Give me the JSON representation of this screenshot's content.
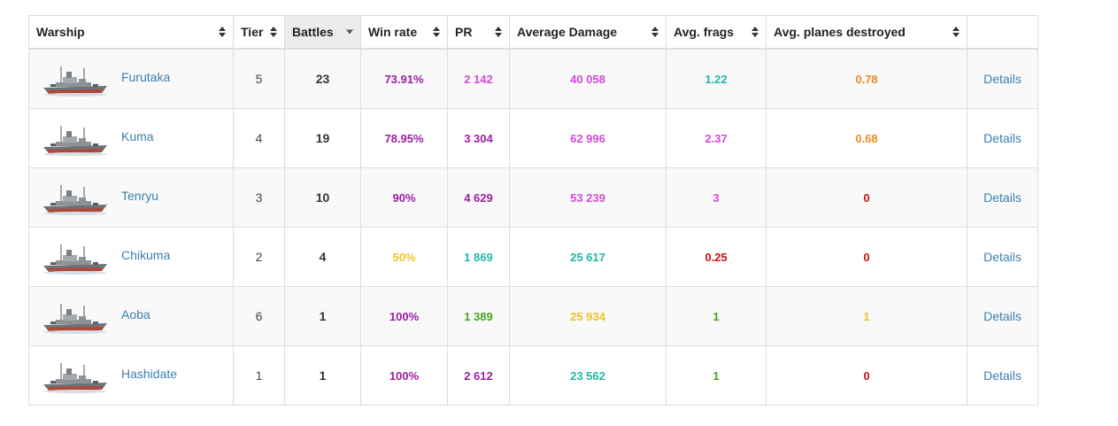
{
  "columns": [
    {
      "label": "Warship",
      "sorted": false
    },
    {
      "label": "Tier",
      "sorted": false
    },
    {
      "label": "Battles",
      "sorted": true
    },
    {
      "label": "Win rate",
      "sorted": false
    },
    {
      "label": "PR",
      "sorted": false
    },
    {
      "label": "Average Damage",
      "sorted": false
    },
    {
      "label": "Avg. frags",
      "sorted": false
    },
    {
      "label": "Avg. planes destroyed",
      "sorted": false
    },
    {
      "label": "",
      "sorted": false
    }
  ],
  "colors": {
    "purple": "#9b1ea3",
    "magenta": "#d24bd8",
    "teal": "#1fb8a6",
    "green": "#44a51c",
    "yellow": "#f0c22a",
    "orange": "#ee8a1e",
    "red": "#d00f0f",
    "link": "#3a7fb0"
  },
  "rows": [
    {
      "name": "Furutaka",
      "tier": "5",
      "battles": "23",
      "win_rate": {
        "text": "73.91%",
        "color": "#9b1ea3"
      },
      "pr": {
        "text": "2 142",
        "color": "#d24bd8"
      },
      "avg_damage": {
        "text": "40 058",
        "color": "#d24bd8"
      },
      "avg_frags": {
        "text": "1.22",
        "color": "#1fb8a6"
      },
      "avg_planes": {
        "text": "0.78",
        "color": "#ee8a1e"
      },
      "details": "Details"
    },
    {
      "name": "Kuma",
      "tier": "4",
      "battles": "19",
      "win_rate": {
        "text": "78.95%",
        "color": "#9b1ea3"
      },
      "pr": {
        "text": "3 304",
        "color": "#9b1ea3"
      },
      "avg_damage": {
        "text": "62 996",
        "color": "#d24bd8"
      },
      "avg_frags": {
        "text": "2.37",
        "color": "#d24bd8"
      },
      "avg_planes": {
        "text": "0.68",
        "color": "#ee8a1e"
      },
      "details": "Details"
    },
    {
      "name": "Tenryu",
      "tier": "3",
      "battles": "10",
      "win_rate": {
        "text": "90%",
        "color": "#9b1ea3"
      },
      "pr": {
        "text": "4 629",
        "color": "#9b1ea3"
      },
      "avg_damage": {
        "text": "53 239",
        "color": "#d24bd8"
      },
      "avg_frags": {
        "text": "3",
        "color": "#d24bd8"
      },
      "avg_planes": {
        "text": "0",
        "color": "#d00f0f"
      },
      "details": "Details"
    },
    {
      "name": "Chikuma",
      "tier": "2",
      "battles": "4",
      "win_rate": {
        "text": "50%",
        "color": "#f0c22a"
      },
      "pr": {
        "text": "1 869",
        "color": "#1fb8a6"
      },
      "avg_damage": {
        "text": "25 617",
        "color": "#1fb8a6"
      },
      "avg_frags": {
        "text": "0.25",
        "color": "#d00f0f"
      },
      "avg_planes": {
        "text": "0",
        "color": "#d00f0f"
      },
      "details": "Details"
    },
    {
      "name": "Aoba",
      "tier": "6",
      "battles": "1",
      "win_rate": {
        "text": "100%",
        "color": "#9b1ea3"
      },
      "pr": {
        "text": "1 389",
        "color": "#44a51c"
      },
      "avg_damage": {
        "text": "25 934",
        "color": "#f0c22a"
      },
      "avg_frags": {
        "text": "1",
        "color": "#44a51c"
      },
      "avg_planes": {
        "text": "1",
        "color": "#f0c22a"
      },
      "details": "Details"
    },
    {
      "name": "Hashidate",
      "tier": "1",
      "battles": "1",
      "win_rate": {
        "text": "100%",
        "color": "#9b1ea3"
      },
      "pr": {
        "text": "2 612",
        "color": "#9b1ea3"
      },
      "avg_damage": {
        "text": "23 562",
        "color": "#1fb8a6"
      },
      "avg_frags": {
        "text": "1",
        "color": "#44a51c"
      },
      "avg_planes": {
        "text": "0",
        "color": "#d00f0f"
      },
      "details": "Details"
    }
  ]
}
